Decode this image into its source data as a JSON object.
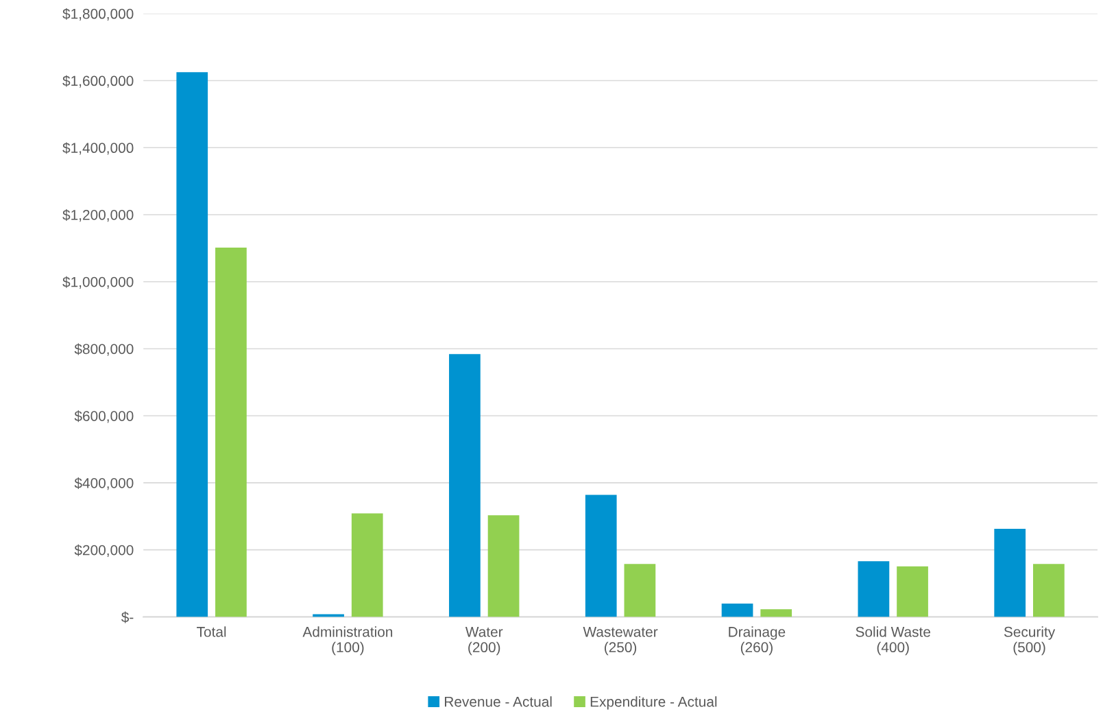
{
  "chart_data": {
    "type": "bar",
    "categories": [
      "Total",
      "Administration\n(100)",
      "Water\n(200)",
      "Wastewater\n(250)",
      "Drainage\n(260)",
      "Solid Waste\n(400)",
      "Security\n(500)"
    ],
    "series": [
      {
        "name": "Revenue - Actual",
        "color": "#0093d0",
        "values": [
          1625000,
          8000,
          784000,
          364000,
          40000,
          166000,
          263000
        ]
      },
      {
        "name": "Expenditure - Actual",
        "color": "#92d050",
        "values": [
          1102000,
          309000,
          303000,
          158000,
          23000,
          151000,
          158000
        ]
      }
    ],
    "ylim": [
      0,
      1800000
    ],
    "yticks": [
      {
        "value": 0,
        "label": "$-"
      },
      {
        "value": 200000,
        "label": "$200,000"
      },
      {
        "value": 400000,
        "label": "$400,000"
      },
      {
        "value": 600000,
        "label": "$600,000"
      },
      {
        "value": 800000,
        "label": "$800,000"
      },
      {
        "value": 1000000,
        "label": "$1,000,000"
      },
      {
        "value": 1200000,
        "label": "$1,200,000"
      },
      {
        "value": 1400000,
        "label": "$1,400,000"
      },
      {
        "value": 1600000,
        "label": "$1,600,000"
      },
      {
        "value": 1800000,
        "label": "$1,800,000"
      }
    ],
    "grid": "y",
    "legend": "bottom"
  }
}
